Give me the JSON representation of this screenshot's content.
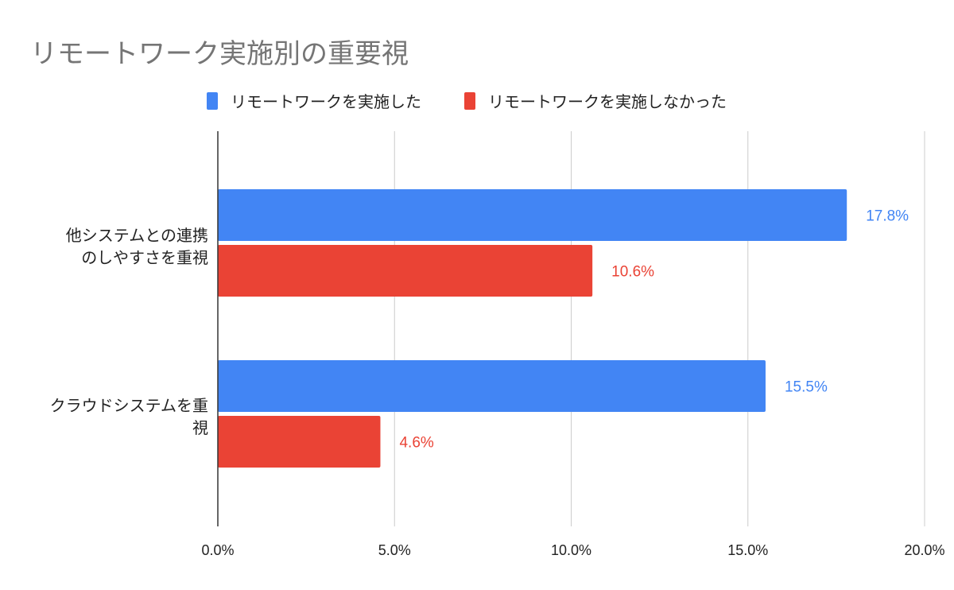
{
  "chart_data": {
    "type": "bar",
    "orientation": "horizontal",
    "title": "リモートワーク実施別の重要視",
    "categories": [
      "他システムとの連携のしやすさを重視",
      "クラウドシステムを重視"
    ],
    "series": [
      {
        "name": "リモートワークを実施した",
        "values": [
          17.8,
          15.5
        ],
        "labels": [
          "17.8%",
          "15.5%"
        ],
        "color": "#4285f4"
      },
      {
        "name": "リモートワークを実施しなかった",
        "values": [
          10.6,
          4.6
        ],
        "labels": [
          "10.6%",
          "4.6%"
        ],
        "color": "#ea4335"
      }
    ],
    "xlim": [
      0,
      20
    ],
    "xticks": [
      "0.0%",
      "5.0%",
      "10.0%",
      "15.0%",
      "20.0%"
    ],
    "grid": true,
    "legend": "top",
    "xlabel": "",
    "ylabel": ""
  }
}
